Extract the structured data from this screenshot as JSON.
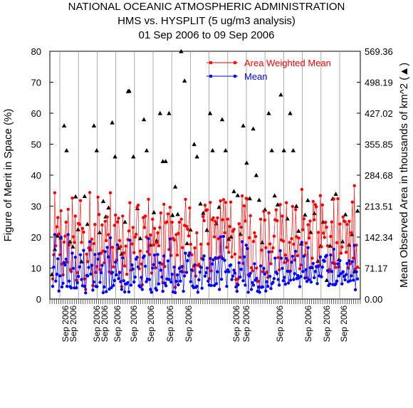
{
  "chart_data": {
    "type": "scatter",
    "title_lines": [
      "NATIONAL OCEANIC ATMOSPHERIC ADMINISTRATION",
      "HMS vs. HYSPLIT (5 ug/m3 analysis)",
      "01 Sep 2006 to 09 Sep 2006"
    ],
    "ylabel": "Figure of Merit in Space (%)",
    "y2label": "Mean Observed Area in thousands of km^2 (▲)",
    "ylim": [
      0,
      80
    ],
    "yticks": [
      "0",
      "10",
      "20",
      "30",
      "40",
      "50",
      "60",
      "70",
      "80"
    ],
    "y2lim": [
      0,
      569.36
    ],
    "y2ticks": [
      "0.00",
      "71.17",
      "142.34",
      "213.51",
      "284.68",
      "355.85",
      "427.02",
      "498.19",
      "569.36"
    ],
    "x_date_labels": [
      "Sep 2006",
      "Sep 2006",
      "Sep 2006",
      "Sep 2006",
      "Sep 2006",
      "Sep 2006",
      "Sep 2006",
      "Sep 2006",
      "Sep 2006",
      "Sep 2006",
      "Sep 2006",
      "Sep 2006",
      "Sep 2006",
      "Sep 2006",
      "Sep 2006",
      "Sep 2006"
    ],
    "grid": "vertical",
    "legend_position": "top-right",
    "colors": {
      "area_weighted_mean": "#ff0000",
      "mean": "#0000ff",
      "observed_area": "#000000",
      "grid": "#999999"
    },
    "series": [
      {
        "name": "Area Weighted Mean",
        "values": [
          6.5,
          14.3,
          34.3,
          17.2,
          23.3,
          26.3,
          21.0,
          14.3,
          28.5,
          11.3,
          7.8,
          18.4,
          20.3,
          24.8,
          11.9,
          29.0,
          17.5,
          9.5,
          8.9,
          32.6,
          20.1,
          18.3,
          26.8,
          6.1,
          8.5,
          24.4,
          24.1,
          31.8,
          18.3,
          22.8,
          21.6,
          6.5,
          3.1,
          14.5,
          12.1,
          16.5,
          34.4,
          15.9,
          19.3,
          4.4,
          17.9,
          24.1,
          8.6,
          10.5,
          32.9,
          27.3,
          9.5,
          14.8,
          23.9,
          15.5,
          11.7,
          25.1,
          18.9,
          26.5,
          20.8,
          8.8,
          34.3,
          8.3,
          16.7,
          10.4,
          23.8,
          27.1,
          12.6,
          24.9,
          26.1,
          18.9,
          16.9,
          4.0,
          26.8,
          14.9,
          10.7,
          17.1,
          8.0,
          19.2,
          22.0,
          31.1,
          9.3,
          17.8,
          23.1,
          15.0,
          20.0,
          20.9,
          29.6,
          30.3,
          9.8,
          15.5,
          11.3,
          4.6,
          26.3,
          23.1,
          26.8,
          20.0,
          15.3,
          32.2,
          14.4,
          20.7,
          8.4,
          25.8,
          17.5,
          22.8,
          10.1,
          18.2,
          21.4,
          17.2,
          23.1,
          27.8,
          11.3,
          5.3,
          30.6,
          10.5,
          24.7,
          24.9,
          27.5,
          16.0,
          29.6,
          14.1,
          24.8,
          19.6,
          19.1,
          3.8,
          20.8,
          14.2,
          21.2,
          24.8,
          10.3,
          25.8,
          16.6,
          8.7,
          23.8,
          32.2,
          23.5,
          22.6,
          20.4,
          29.4,
          17.7,
          14.3,
          9.2,
          10.6,
          16.5,
          7.4,
          21.4,
          10.9,
          11.2,
          10.6,
          17.7,
          13.1,
          26.7,
          25.3,
          30.3,
          28.6,
          28.8,
          17.8,
          6.6,
          31.2,
          9.1,
          25.6,
          26.2,
          20.1,
          25.1,
          13.1,
          26.2,
          19.5,
          13.6,
          31.7,
          13.6,
          25.6,
          32.1,
          21.4,
          31.2,
          16.7,
          25.8,
          15.1,
          23.4,
          31.3,
          13.6,
          21.9,
          22.5,
          14.5,
          6.3,
          4.9,
          6.5,
          24.3,
          13.5,
          23.2,
          33.3,
          11.5,
          30.1,
          25.2,
          32.5,
          32.3,
          7.8,
          19.8,
          26.9,
          10.1,
          9.1,
          18.6,
          21.4,
          20.2,
          10.0,
          5.7,
          5.8,
          3.8,
          25.8,
          15.8,
          8.8,
          28.3,
          25.5,
          16.6,
          8.7,
          7.0,
          27.8,
          17.8,
          11.4,
          15.3,
          16.5,
          20.3,
          25.6,
          28.8,
          25.3,
          13.4,
          9.4,
          30.5,
          19.1,
          26.8,
          18.7,
          11.8,
          14.2,
          31.1,
          12.4,
          9.0,
          18.3,
          9.1,
          19.5,
          29.9,
          17.7,
          12.6,
          28.9,
          20.1,
          14.0,
          19.7,
          9.8,
          11.0,
          35.4,
          22.4,
          25.9,
          14.2,
          18.1,
          7.0,
          24.0,
          19.7,
          25.2,
          10.3,
          13.2,
          31.5,
          25.6,
          30.5,
          29.8,
          10.4,
          21.5,
          10.9,
          33.4,
          16.9,
          30.4,
          21.3,
          19.9,
          24.8,
          23.2,
          17.2,
          8.8,
          9.5,
          20.2,
          24.9,
          11.7,
          32.3,
          11.4,
          10.2,
          18.2,
          32.4,
          10.4,
          24.2,
          14.8,
          16.8,
          26.5,
          25.2,
          25.0,
          15.1,
          24.1,
          10.0,
          25.1,
          11.4,
          21.4,
          31.3,
          13.2,
          36.6,
          9.7,
          17.4,
          10.3
        ]
      },
      {
        "name": "Mean",
        "values": [
          4.1,
          10.3,
          20.8,
          5.8,
          8.0,
          13.0,
          2.6,
          7.5,
          20.0,
          3.9,
          5.1,
          11.8,
          11.0,
          12.9,
          4.1,
          20.8,
          5.8,
          4.0,
          3.6,
          14.8,
          9.9,
          3.6,
          13.5,
          3.6,
          5.3,
          7.3,
          10.4,
          14.3,
          6.3,
          4.3,
          15.7,
          4.1,
          2.0,
          7.6,
          7.5,
          10.2,
          18.5,
          8.1,
          10.9,
          2.9,
          5.5,
          14.4,
          4.1,
          4.0,
          12.9,
          14.6,
          5.4,
          8.5,
          10.9,
          2.1,
          3.9,
          15.3,
          2.4,
          16.7,
          13.6,
          3.2,
          19.8,
          3.7,
          8.6,
          4.4,
          6.0,
          11.9,
          7.8,
          17.5,
          6.6,
          8.6,
          5.6,
          3.1,
          13.3,
          5.9,
          2.3,
          4.9,
          5.0,
          5.3,
          2.3,
          19.0,
          4.5,
          11.0,
          9.7,
          5.5,
          7.1,
          12.9,
          13.5,
          10.4,
          4.3,
          3.9,
          7.0,
          3.1,
          13.4,
          13.9,
          10.6,
          5.6,
          6.4,
          19.5,
          6.3,
          3.1,
          2.2,
          10.0,
          11.1,
          14.2,
          3.4,
          2.9,
          14.4,
          4.9,
          11.7,
          9.3,
          7.1,
          2.5,
          13.9,
          5.1,
          4.3,
          6.5,
          12.3,
          6.3,
          19.4,
          5.5,
          8.0,
          2.3,
          10.3,
          2.1,
          5.7,
          7.8,
          4.6,
          9.9,
          5.8,
          8.9,
          10.5,
          2.5,
          7.5,
          14.8,
          8.6,
          12.4,
          14.1,
          14.9,
          5.6,
          9.4,
          4.2,
          3.7,
          11.0,
          3.8,
          4.1,
          2.2,
          6.2,
          8.7,
          10.2,
          3.5,
          12.8,
          13.9,
          7.4,
          8.5,
          10.0,
          5.8,
          4.5,
          13.1,
          4.4,
          11.3,
          12.7,
          4.4,
          13.3,
          5.0,
          8.8,
          13.3,
          3.1,
          20.1,
          6.4,
          13.1,
          20.2,
          12.5,
          8.8,
          4.1,
          9.4,
          8.8,
          10.8,
          11.0,
          6.3,
          7.4,
          9.3,
          8.4,
          3.9,
          2.5,
          4.6,
          11.7,
          7.1,
          9.6,
          18.5,
          5.9,
          13.6,
          4.5,
          17.4,
          16.3,
          2.2,
          7.5,
          8.3,
          3.1,
          5.3,
          4.5,
          11.4,
          6.1,
          6.7,
          2.5,
          3.9,
          2.2,
          10.7,
          3.8,
          3.9,
          9.9,
          8.1,
          2.6,
          5.6,
          4.1,
          15.2,
          7.3,
          3.4,
          5.0,
          5.4,
          6.6,
          13.2,
          8.7,
          8.2,
          6.3,
          4.5,
          15.6,
          13.2,
          9.9,
          5.9,
          7.0,
          4.8,
          13.1,
          9.0,
          5.2,
          8.9,
          6.1,
          11.9,
          13.8,
          6.3,
          8.2,
          15.4,
          6.6,
          7.6,
          6.8,
          4.0,
          7.3,
          18.3,
          8.9,
          13.8,
          6.8,
          9.5,
          5.7,
          16.6,
          6.3,
          10.1,
          5.5,
          10.1,
          11.5,
          6.9,
          8.9,
          10.5,
          5.0,
          10.6,
          7.5,
          13.6,
          7.2,
          10.3,
          12.5,
          12.2,
          13.7,
          14.1,
          9.2,
          4.4,
          4.9,
          14.2,
          8.9,
          4.7,
          16.1,
          4.6,
          4.9,
          5.8,
          11.4,
          7.5,
          12.4,
          8.2,
          4.9,
          8.8,
          7.3,
          6.2,
          7.9,
          11.5,
          5.6,
          12.3,
          5.9,
          7.5,
          12.1,
          6.1,
          17.3,
          3.0,
          8.8,
          6.5
        ]
      },
      {
        "name": "Mean Observed Area (thousands km^2)",
        "points": [
          [
            0.7,
            8.0
          ],
          [
            1.6,
            16.1
          ],
          [
            2.4,
            20.4
          ],
          [
            3.5,
            19.8
          ],
          [
            4.6,
            56.0
          ],
          [
            5.4,
            48.0
          ],
          [
            6.5,
            18.5
          ],
          [
            7.4,
            16.9
          ],
          [
            8.3,
            33.1
          ],
          [
            9.1,
            22.5
          ],
          [
            10.2,
            12.1
          ],
          [
            11.2,
            33.2
          ],
          [
            12.1,
            24.2
          ],
          [
            13.0,
            16.1
          ],
          [
            14.2,
            56.0
          ],
          [
            15.1,
            48.0
          ],
          [
            16.0,
            21.5
          ],
          [
            17.2,
            31.6
          ],
          [
            18.0,
            26.6
          ],
          [
            18.9,
            29.5
          ],
          [
            20.1,
            57.0
          ],
          [
            21.0,
            46.0
          ],
          [
            22.2,
            16.5
          ],
          [
            23.1,
            14.6
          ],
          [
            24.2,
            24.9
          ],
          [
            25.2,
            67.1
          ],
          [
            25.6,
            67.2
          ],
          [
            26.9,
            46.0
          ],
          [
            28.2,
            29.3
          ],
          [
            29.1,
            19.6
          ],
          [
            30.3,
            58.0
          ],
          [
            31.2,
            48.0
          ],
          [
            32.4,
            17.5
          ],
          [
            33.5,
            28.0
          ],
          [
            34.4,
            18.9
          ],
          [
            35.5,
            60.0
          ],
          [
            36.4,
            44.5
          ],
          [
            37.3,
            44.5
          ],
          [
            38.4,
            60.0
          ],
          [
            39.5,
            27.1
          ],
          [
            40.4,
            36.3
          ],
          [
            41.2,
            27.4
          ],
          [
            42.3,
            80.0
          ],
          [
            43.4,
            70.5
          ],
          [
            44.2,
            18.0
          ],
          [
            45.3,
            22.4
          ],
          [
            46.5,
            50.0
          ],
          [
            47.4,
            46.0
          ],
          [
            48.5,
            30.8
          ],
          [
            49.4,
            27.8
          ],
          [
            50.6,
            22.3
          ],
          [
            51.6,
            60.0
          ],
          [
            52.4,
            48.0
          ],
          [
            53.6,
            24.4
          ],
          [
            54.5,
            29.7
          ],
          [
            55.5,
            58.0
          ],
          [
            56.6,
            48.0
          ],
          [
            57.6,
            19.4
          ],
          [
            58.4,
            20.1
          ],
          [
            59.3,
            34.8
          ],
          [
            60.5,
            33.5
          ],
          [
            61.4,
            21.0
          ],
          [
            62.3,
            56.0
          ],
          [
            63.4,
            44.0
          ],
          [
            64.4,
            32.5
          ],
          [
            65.5,
            55.0
          ],
          [
            66.5,
            40.0
          ],
          [
            67.4,
            32.0
          ],
          [
            68.4,
            18.3
          ],
          [
            69.3,
            28.9
          ],
          [
            70.5,
            60.0
          ],
          [
            71.5,
            48.0
          ],
          [
            72.4,
            33.4
          ],
          [
            73.4,
            30.5
          ],
          [
            74.4,
            66.0
          ],
          [
            75.4,
            48.0
          ],
          [
            76.5,
            26.0
          ],
          [
            77.4,
            60.0
          ],
          [
            78.4,
            48.0
          ],
          [
            79.4,
            30.0
          ],
          [
            80.1,
            22.0
          ],
          [
            81.0,
            17.9
          ],
          [
            82.2,
            27.2
          ],
          [
            83.1,
            31.9
          ],
          [
            84.0,
            21.6
          ],
          [
            85.2,
            27.7
          ],
          [
            86.3,
            12.3
          ],
          [
            87.1,
            17.1
          ],
          [
            88.0,
            24.9
          ],
          [
            89.2,
            6.1
          ],
          [
            90.3,
            17.2
          ],
          [
            91.1,
            32.4
          ],
          [
            92.1,
            33.9
          ],
          [
            93.1,
            12.8
          ],
          [
            94.3,
            18.6
          ],
          [
            95.2,
            27.3
          ],
          [
            96.4,
            17.5
          ],
          [
            97.3,
            20.9
          ],
          [
            98.1,
            8.9
          ],
          [
            99.1,
            28.5
          ]
        ]
      }
    ]
  },
  "legend": {
    "area_weighted_mean_label": "Area Weighted Mean",
    "mean_label": "Mean"
  }
}
